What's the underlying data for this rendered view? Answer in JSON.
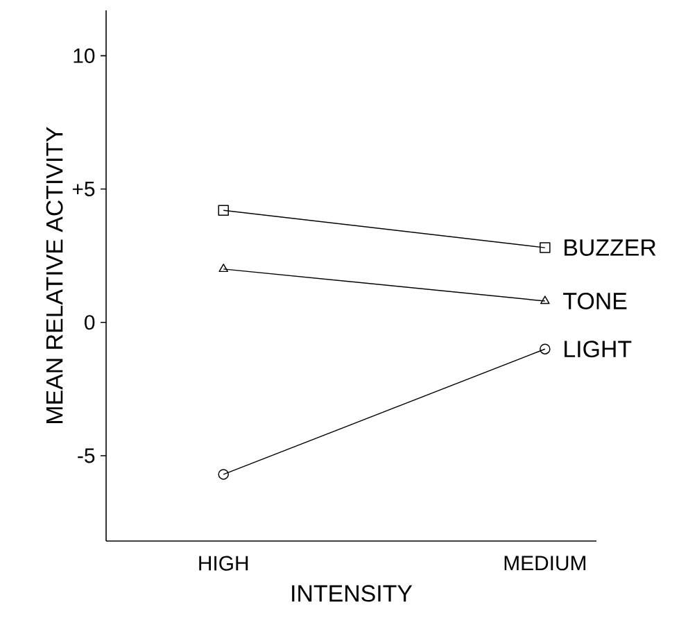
{
  "chart_data": {
    "type": "line",
    "xlabel": "INTENSITY",
    "ylabel": "MEAN RELATIVE ACTIVITY",
    "categories": [
      "HIGH",
      "MEDIUM"
    ],
    "series": [
      {
        "name": "BUZZER",
        "color": "#000000",
        "marker": "square",
        "values": [
          4.2,
          2.8
        ]
      },
      {
        "name": "TONE",
        "color": "#000000",
        "marker": "triangle",
        "values": [
          2.0,
          0.8
        ]
      },
      {
        "name": "LIGHT",
        "color": "#000000",
        "marker": "circle",
        "values": [
          -5.7,
          -1.0
        ]
      }
    ],
    "ylim": [
      -8.2,
      11.7
    ],
    "yticks": [
      10,
      {
        "value": 5,
        "label": "+5"
      },
      0,
      {
        "value": -5,
        "label": "-5"
      }
    ],
    "line_style": "solid",
    "grid": false
  }
}
